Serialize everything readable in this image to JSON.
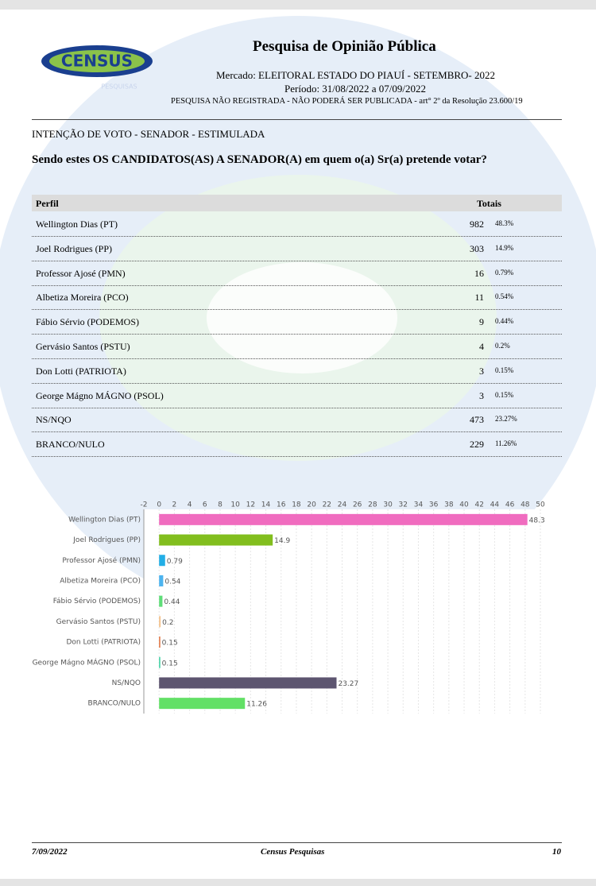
{
  "header": {
    "logo": "CENSUS",
    "logo_sub": "PESQUISAS",
    "title": "Pesquisa de Opinião Pública",
    "market": "Mercado: ELEITORAL ESTADO DO PIAUÍ - SETEMBRO- 2022",
    "period": "Período: 31/08/2022 a 07/09/2022",
    "notice": "PESQUISA NÃO REGISTRADA - NÃO PODERÁ SER PUBLICADA - art° 2º da Resolução 23.600/19"
  },
  "section": "INTENÇÃO DE VOTO - SENADOR - ESTIMULADA",
  "question": "Sendo estes OS CANDIDATOS(AS) A SENADOR(A) em quem o(a) Sr(a) pretende votar?",
  "table": {
    "columns": [
      "Perfil",
      "Totais"
    ],
    "rows": [
      [
        "Wellington Dias (PT)",
        "982",
        "48.3%"
      ],
      [
        "Joel Rodrigues (PP)",
        "303",
        "14.9%"
      ],
      [
        "Professor Ajosé (PMN)",
        "16",
        "0.79%"
      ],
      [
        "Albetiza Moreira (PCO)",
        "11",
        "0.54%"
      ],
      [
        "Fábio Sérvio (PODEMOS)",
        "9",
        "0.44%"
      ],
      [
        "Gervásio Santos (PSTU)",
        "4",
        "0.2%"
      ],
      [
        "Don Lotti (PATRIOTA)",
        "3",
        "0.15%"
      ],
      [
        "George Mágno MÁGNO (PSOL)",
        "3",
        "0.15%"
      ],
      [
        "NS/NQO",
        "473",
        "23.27%"
      ],
      [
        "BRANCO/NULO",
        "229",
        "11.26%"
      ]
    ]
  },
  "chart_data": {
    "type": "hbar",
    "categories": [
      "Wellington Dias (PT)",
      "Joel Rodrigues (PP)",
      "Professor Ajosé (PMN)",
      "Albetiza Moreira (PCO)",
      "Fábio Sérvio (PODEMOS)",
      "Gervásio Santos (PSTU)",
      "Don Lotti (PATRIOTA)",
      "George Mágno MÁGNO (PSOL)",
      "NS/NQO",
      "BRANCO/NULO"
    ],
    "values": [
      48.3,
      14.9,
      0.79,
      0.54,
      0.44,
      0.2,
      0.15,
      0.15,
      23.27,
      11.26
    ],
    "colors": [
      "#f06cbf",
      "#82be1e",
      "#22aee6",
      "#4cb4ef",
      "#5edd78",
      "#f4c28c",
      "#e0703c",
      "#38cfa0",
      "#5d5570",
      "#62e066"
    ],
    "xlim": [
      -2,
      50
    ],
    "xticks": [
      -2,
      0,
      2,
      4,
      6,
      8,
      10,
      12,
      14,
      16,
      18,
      20,
      22,
      24,
      26,
      28,
      30,
      32,
      34,
      36,
      38,
      40,
      42,
      44,
      46,
      48,
      50
    ],
    "grid": true
  },
  "footer": {
    "date": "7/09/2022",
    "company": "Census Pesquisas",
    "page": "10"
  }
}
